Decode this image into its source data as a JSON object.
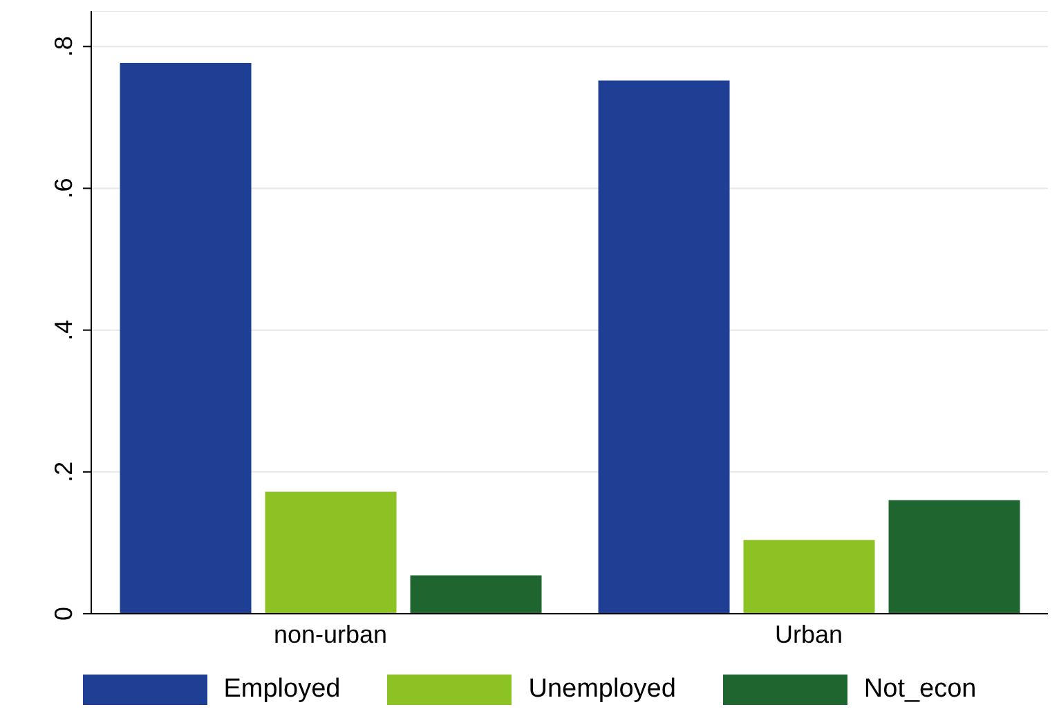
{
  "chart_data": {
    "type": "bar",
    "categories": [
      "non-urban",
      "Urban"
    ],
    "series": [
      {
        "name": "Employed",
        "color": "#1f3f95",
        "values": [
          0.777,
          0.752
        ]
      },
      {
        "name": "Unemployed",
        "color": "#8dc224",
        "values": [
          0.172,
          0.104
        ]
      },
      {
        "name": "Not_econ",
        "color": "#1e6530",
        "values": [
          0.054,
          0.16
        ]
      }
    ],
    "ylim": [
      0,
      0.85
    ],
    "yticks": [
      {
        "value": 0,
        "label": "0"
      },
      {
        "value": 0.2,
        "label": ".2"
      },
      {
        "value": 0.4,
        "label": ".4"
      },
      {
        "value": 0.6,
        "label": ".6"
      },
      {
        "value": 0.8,
        "label": ".8"
      }
    ],
    "grid": "y",
    "legend": "bottom"
  }
}
